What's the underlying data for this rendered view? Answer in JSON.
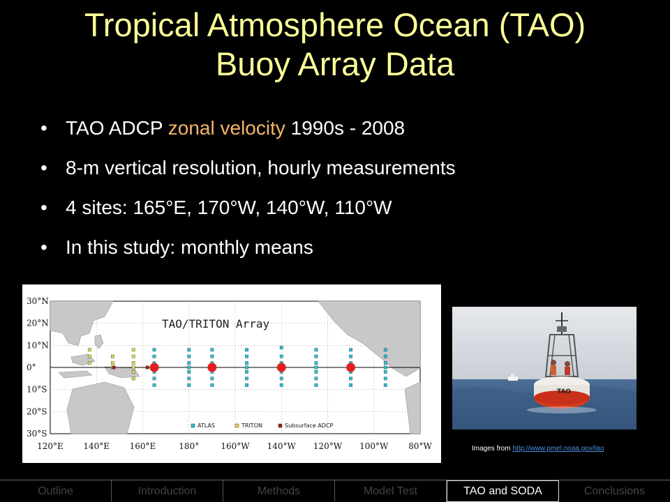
{
  "title": {
    "line1": "Tropical Atmosphere Ocean (TAO)",
    "line2": "Buoy Array Data"
  },
  "bullets": [
    {
      "pre": "TAO ADCP ",
      "hl": "zonal velocity",
      "post": " 1990s - 2008"
    },
    {
      "pre": "8-m vertical resolution, hourly measurements"
    },
    {
      "pre": "4 sites: 165°E, 170°W, 140°W, 110°W"
    },
    {
      "pre": "In this study: monthly means"
    }
  ],
  "map": {
    "title": "TAO/TRITON Array",
    "lat_labels": [
      "30°N",
      "20°N",
      "10°N",
      "0°",
      "10°S",
      "20°S",
      "30°S"
    ],
    "lon_labels": [
      "120°E",
      "140°E",
      "160°E",
      "180°",
      "160°W",
      "140°W",
      "120°W",
      "100°W",
      "80°W"
    ],
    "legend": [
      "ATLAS",
      "TRITON",
      "Subsurface ADCP"
    ],
    "colors": {
      "atlas": "#29c3d6",
      "triton": "#e3d94a",
      "adcp": "#9b1b1b",
      "site": "#e0201f",
      "land": "#c8c8c8"
    },
    "highlighted_sites_lon": [
      165,
      -170,
      -140,
      -110
    ]
  },
  "caption": {
    "text": "Images from ",
    "link": "http://www.pmel.noaa.gov/tao"
  },
  "nav": {
    "tabs": [
      "Outline",
      "Introduction",
      "Methods",
      "Model Test",
      "TAO and SODA",
      "Conclusions"
    ],
    "active": "TAO and SODA"
  }
}
